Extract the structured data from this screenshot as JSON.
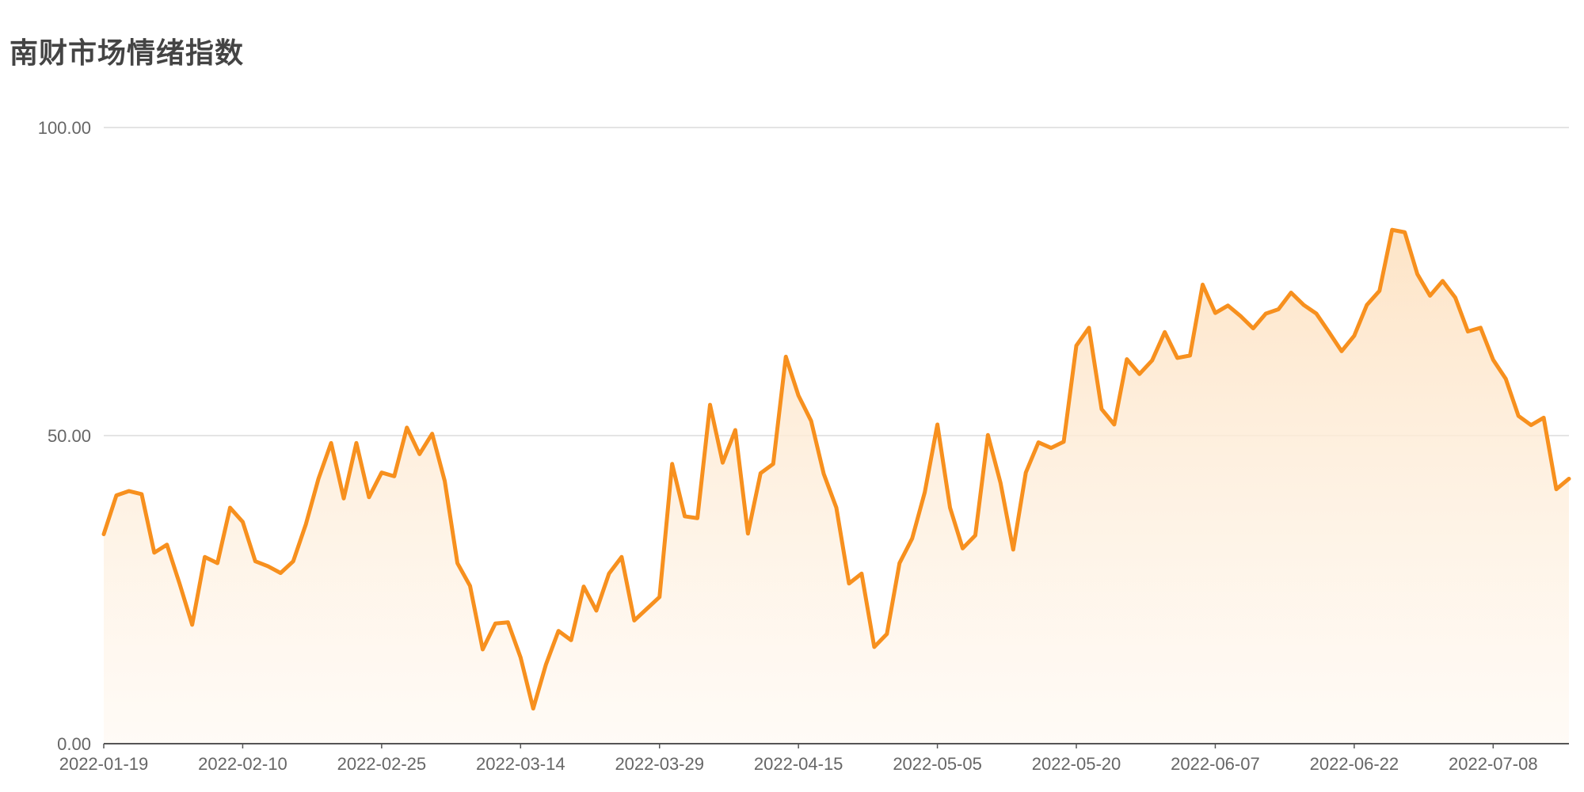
{
  "chart_data": {
    "type": "area",
    "title": "南财市场情绪指数",
    "xlabel": "",
    "ylabel": "",
    "ylim": [
      0,
      100
    ],
    "y_ticks": [
      "0.00",
      "50.00",
      "100.00"
    ],
    "y_tick_values": [
      0,
      50,
      100
    ],
    "grid": true,
    "legend": "none",
    "x_tick_labels": [
      "2022-01-19",
      "2022-02-10",
      "2022-02-25",
      "2022-03-14",
      "2022-03-29",
      "2022-04-15",
      "2022-05-05",
      "2022-05-20",
      "2022-06-07",
      "2022-06-22",
      "2022-07-08"
    ],
    "x_tick_indices": [
      0,
      11,
      22,
      33,
      44,
      55,
      66,
      77,
      88,
      99,
      110
    ],
    "series": [
      {
        "color": "#f7901e",
        "values": [
          34.0,
          40.3,
          41.0,
          40.5,
          31.0,
          32.3,
          26.0,
          19.3,
          30.3,
          29.3,
          38.3,
          36.0,
          29.6,
          28.8,
          27.7,
          29.6,
          35.6,
          43.0,
          48.8,
          39.8,
          48.8,
          40.0,
          44.0,
          43.4,
          51.3,
          47.0,
          50.3,
          42.6,
          29.3,
          25.6,
          15.3,
          19.5,
          19.7,
          14.0,
          5.7,
          12.8,
          18.3,
          16.8,
          25.5,
          21.6,
          27.6,
          30.3,
          20.0,
          21.9,
          23.8,
          45.4,
          36.9,
          36.6,
          55.0,
          45.6,
          50.9,
          34.1,
          43.9,
          45.4,
          62.8,
          56.5,
          52.4,
          43.8,
          38.3,
          26.0,
          27.6,
          15.7,
          17.8,
          29.3,
          33.3,
          40.8,
          51.8,
          38.3,
          31.7,
          33.8,
          50.1,
          42.3,
          31.5,
          44.0,
          48.9,
          48.0,
          49.0,
          64.6,
          67.5,
          54.3,
          51.8,
          62.4,
          60.0,
          62.2,
          66.8,
          62.6,
          63.0,
          74.5,
          69.9,
          71.1,
          69.4,
          67.4,
          69.8,
          70.5,
          73.2,
          71.2,
          69.8,
          66.8,
          63.7,
          66.2,
          71.2,
          73.5,
          83.4,
          83.0,
          76.2,
          72.7,
          75.1,
          72.4,
          66.9,
          67.5,
          62.3,
          59.2,
          53.2,
          51.7,
          52.9,
          41.3,
          43.0
        ]
      }
    ]
  }
}
